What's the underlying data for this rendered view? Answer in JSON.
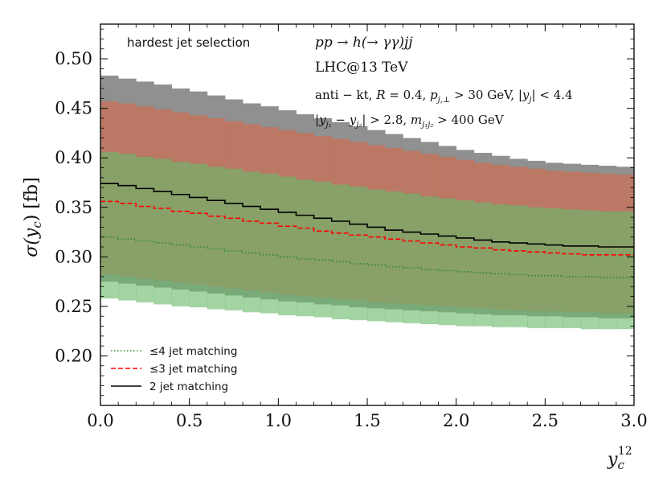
{
  "chart_data": {
    "type": "step-band",
    "xlabel": "y_c^12",
    "ylabel": "σ(y_c) [fb]",
    "xlim": [
      0.0,
      3.0
    ],
    "ylim": [
      0.15,
      0.535
    ],
    "xticks": [
      "0.0",
      "0.5",
      "1.0",
      "1.5",
      "2.0",
      "2.5",
      "3.0"
    ],
    "xtick_values": [
      0.0,
      0.5,
      1.0,
      1.5,
      2.0,
      2.5,
      3.0
    ],
    "yticks": [
      "0.20",
      "0.25",
      "0.30",
      "0.35",
      "0.40",
      "0.45",
      "0.50"
    ],
    "ytick_values": [
      0.2,
      0.25,
      0.3,
      0.35,
      0.4,
      0.45,
      0.5
    ],
    "bin_width": 0.1,
    "annotations": {
      "selection": "hardest jet selection",
      "process": "pp → h(→ γγ)jj",
      "collider": "LHC@13 TeV",
      "cuts1": "anti − kt, R = 0.4, p_{j,⊥} > 30 GeV, |y_j| < 4.4",
      "cuts2": "|y_{j1} − y_{j2}| > 2.8, m_{j1 j2} > 400 GeV"
    },
    "series": [
      {
        "name": "≤4 jet matching",
        "color": "#6aba6a",
        "line_color": "#2e8b2e",
        "line_style": "dotted",
        "center": [
          0.32,
          0.318,
          0.316,
          0.314,
          0.312,
          0.31,
          0.308,
          0.306,
          0.304,
          0.302,
          0.3,
          0.298,
          0.297,
          0.295,
          0.293,
          0.292,
          0.29,
          0.289,
          0.287,
          0.286,
          0.285,
          0.284,
          0.283,
          0.282,
          0.281,
          0.281,
          0.28,
          0.28,
          0.279,
          0.279
        ],
        "lower": [
          0.258,
          0.256,
          0.254,
          0.252,
          0.25,
          0.249,
          0.247,
          0.246,
          0.244,
          0.243,
          0.241,
          0.24,
          0.239,
          0.237,
          0.236,
          0.235,
          0.234,
          0.233,
          0.232,
          0.231,
          0.23,
          0.23,
          0.229,
          0.229,
          0.228,
          0.228,
          0.228,
          0.227,
          0.227,
          0.227
        ],
        "upper": [
          0.406,
          0.404,
          0.401,
          0.399,
          0.396,
          0.394,
          0.391,
          0.389,
          0.386,
          0.384,
          0.381,
          0.378,
          0.376,
          0.373,
          0.371,
          0.368,
          0.366,
          0.364,
          0.361,
          0.359,
          0.357,
          0.355,
          0.353,
          0.352,
          0.35,
          0.349,
          0.348,
          0.347,
          0.346,
          0.346
        ]
      },
      {
        "name": "≤3 jet matching",
        "color": "#d4694a",
        "line_color": "#ff0000",
        "line_style": "dashed",
        "center": [
          0.356,
          0.354,
          0.351,
          0.349,
          0.346,
          0.344,
          0.341,
          0.339,
          0.336,
          0.334,
          0.331,
          0.329,
          0.326,
          0.324,
          0.322,
          0.32,
          0.318,
          0.316,
          0.314,
          0.312,
          0.31,
          0.309,
          0.307,
          0.306,
          0.305,
          0.304,
          0.303,
          0.302,
          0.302,
          0.302
        ],
        "lower": [
          0.282,
          0.28,
          0.278,
          0.276,
          0.274,
          0.272,
          0.27,
          0.268,
          0.266,
          0.264,
          0.262,
          0.26,
          0.259,
          0.257,
          0.256,
          0.254,
          0.253,
          0.252,
          0.251,
          0.25,
          0.249,
          0.248,
          0.247,
          0.246,
          0.245,
          0.245,
          0.244,
          0.244,
          0.243,
          0.243
        ],
        "upper": [
          0.457,
          0.455,
          0.452,
          0.449,
          0.446,
          0.443,
          0.44,
          0.437,
          0.434,
          0.431,
          0.428,
          0.425,
          0.422,
          0.419,
          0.416,
          0.413,
          0.41,
          0.407,
          0.404,
          0.401,
          0.398,
          0.395,
          0.393,
          0.391,
          0.389,
          0.387,
          0.386,
          0.385,
          0.384,
          0.383
        ]
      },
      {
        "name": "2 jet matching",
        "color": "#909090",
        "line_color": "#000000",
        "line_style": "solid",
        "center": [
          0.374,
          0.372,
          0.369,
          0.366,
          0.363,
          0.36,
          0.357,
          0.354,
          0.351,
          0.348,
          0.345,
          0.342,
          0.339,
          0.336,
          0.333,
          0.33,
          0.327,
          0.325,
          0.323,
          0.321,
          0.319,
          0.317,
          0.315,
          0.314,
          0.313,
          0.312,
          0.311,
          0.311,
          0.31,
          0.31
        ],
        "lower": [
          0.275,
          0.273,
          0.271,
          0.269,
          0.267,
          0.265,
          0.263,
          0.261,
          0.259,
          0.257,
          0.255,
          0.254,
          0.252,
          0.251,
          0.249,
          0.248,
          0.247,
          0.246,
          0.245,
          0.244,
          0.243,
          0.242,
          0.241,
          0.241,
          0.24,
          0.24,
          0.239,
          0.239,
          0.238,
          0.238
        ],
        "upper": [
          0.483,
          0.48,
          0.477,
          0.474,
          0.47,
          0.467,
          0.463,
          0.459,
          0.455,
          0.452,
          0.448,
          0.444,
          0.44,
          0.436,
          0.432,
          0.428,
          0.424,
          0.42,
          0.416,
          0.412,
          0.408,
          0.405,
          0.402,
          0.399,
          0.397,
          0.395,
          0.394,
          0.393,
          0.392,
          0.391
        ]
      }
    ]
  }
}
